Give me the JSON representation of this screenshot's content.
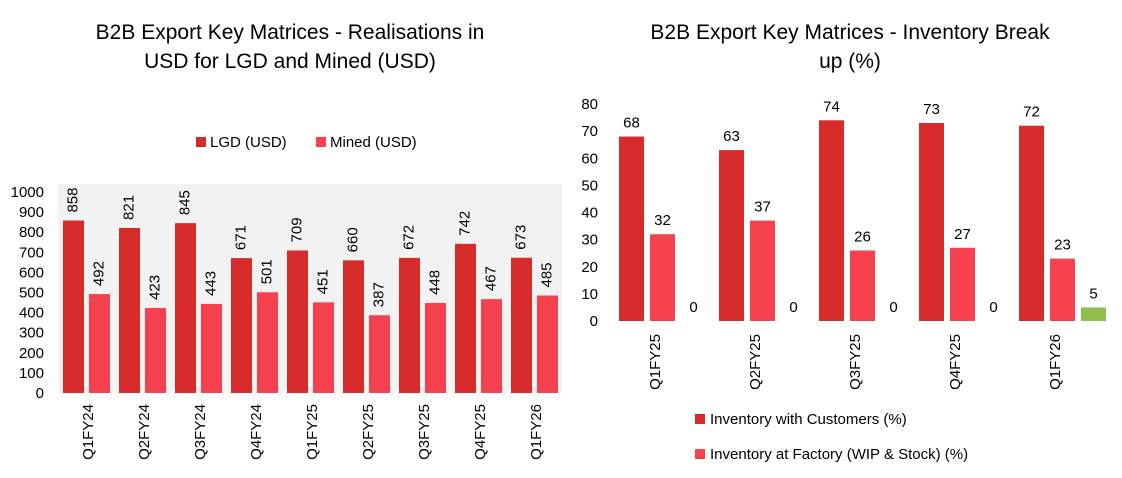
{
  "chart_data": [
    {
      "type": "bar",
      "title_line1": "B2B Export Key Matrices - Realisations in",
      "title_line2": "USD for LGD and Mined (USD)",
      "categories": [
        "Q1FY24",
        "Q2FY24",
        "Q3FY24",
        "Q4FY24",
        "Q1FY25",
        "Q2FY25",
        "Q3FY25",
        "Q4FY25",
        "Q1FY26"
      ],
      "series": [
        {
          "name": "LGD (USD)",
          "color": "#d72b2b",
          "values": [
            858,
            821,
            845,
            671,
            709,
            660,
            672,
            742,
            673
          ]
        },
        {
          "name": "Mined (USD)",
          "color": "#f5424e",
          "values": [
            492,
            423,
            443,
            501,
            451,
            387,
            448,
            467,
            485
          ]
        }
      ],
      "ylim": [
        0,
        1000
      ],
      "yticks": [
        0,
        100,
        200,
        300,
        400,
        500,
        600,
        700,
        800,
        900,
        1000
      ],
      "legend": "top"
    },
    {
      "type": "bar",
      "title_line1": "B2B Export Key Matrices - Inventory Break",
      "title_line2": "up (%)",
      "categories": [
        "Q1FY25",
        "Q2FY25",
        "Q3FY25",
        "Q4FY25",
        "Q1FY26"
      ],
      "series": [
        {
          "name": "Inventory with Customers (%)",
          "color": "#d72b2b",
          "values": [
            68,
            63,
            74,
            73,
            72
          ]
        },
        {
          "name": "Inventory at Factory (WIP & Stock) (%)",
          "color": "#f5424e",
          "values": [
            32,
            37,
            26,
            27,
            23
          ]
        },
        {
          "name": "",
          "color": "#8fbf4a",
          "values": [
            0,
            0,
            0,
            0,
            5
          ]
        }
      ],
      "ylim": [
        0,
        80
      ],
      "yticks": [
        0,
        10,
        20,
        30,
        40,
        50,
        60,
        70,
        80
      ],
      "legend": "bottom"
    }
  ]
}
